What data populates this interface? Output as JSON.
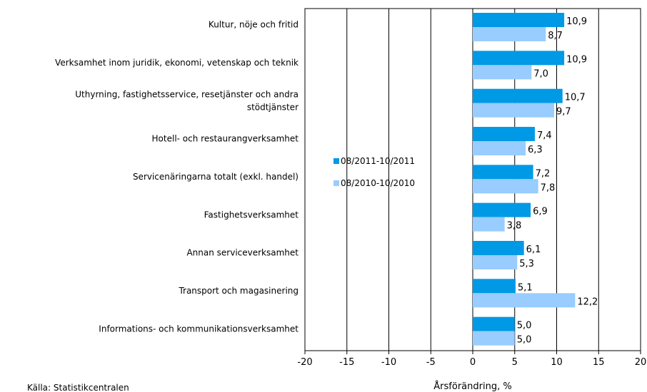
{
  "chart_data": {
    "type": "bar",
    "orientation": "horizontal",
    "categories": [
      "Kultur, nöje och fritid",
      "Verksamhet inom juridik, ekonomi, vetenskap och teknik",
      "Uthyrning, fastighetsservice, resetjänster och andra stödtjänster",
      "Hotell- och restaurangverksamhet",
      "Servicenäringarna totalt (exkl. handel)",
      "Fastighetsverksamhet",
      "Annan serviceverksamhet",
      "Transport och magasinering",
      "Informations- och kommunikationsverksamhet"
    ],
    "category_lines": [
      [
        "Kultur, nöje och fritid"
      ],
      [
        "Verksamhet inom juridik, ekonomi, vetenskap och teknik"
      ],
      [
        "Uthyrning, fastighetsservice, resetjänster och andra",
        "stödtjänster"
      ],
      [
        "Hotell- och restaurangverksamhet"
      ],
      [
        "Servicenäringarna totalt (exkl. handel)"
      ],
      [
        "Fastighetsverksamhet"
      ],
      [
        "Annan serviceverksamhet"
      ],
      [
        "Transport och magasinering"
      ],
      [
        "Informations- och kommunikationsverksamhet"
      ]
    ],
    "series": [
      {
        "name": "08/2011-10/2011",
        "color": "#0099e6",
        "values": [
          10.9,
          10.9,
          10.7,
          7.4,
          7.2,
          6.9,
          6.1,
          5.1,
          5.0
        ],
        "labels": [
          "10,9",
          "10,9",
          "10,7",
          "7,4",
          "7,2",
          "6,9",
          "6,1",
          "5,1",
          "5,0"
        ]
      },
      {
        "name": "08/2010-10/2010",
        "color": "#99ccff",
        "values": [
          8.7,
          7.0,
          9.7,
          6.3,
          7.8,
          3.8,
          5.3,
          12.2,
          5.0
        ],
        "labels": [
          "8,7",
          "7,0",
          "9,7",
          "6,3",
          "7,8",
          "3,8",
          "5,3",
          "12,2",
          "5,0"
        ]
      }
    ],
    "xlim": [
      -20,
      20
    ],
    "xticks": [
      -20,
      -15,
      -10,
      -5,
      0,
      5,
      10,
      15,
      20
    ],
    "xlabel": "Årsförändring, %",
    "legend_position": "inside-left",
    "grid": "vertical",
    "source": "Källa: Statistikcentralen"
  }
}
